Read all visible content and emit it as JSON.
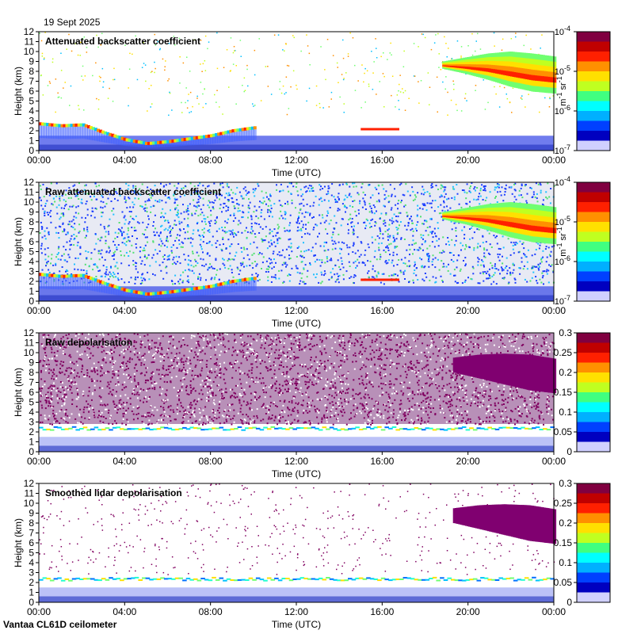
{
  "header": {
    "date": "19 Sept 2025"
  },
  "footer": {
    "instrument": "Vantaa CL61D ceilometer"
  },
  "chart_data": [
    {
      "type": "heatmap",
      "title": "Attenuated backscatter coefficient",
      "xlabel": "Time (UTC)",
      "ylabel": "Height (km)",
      "x_ticks": [
        "00:00",
        "04:00",
        "08:00",
        "12:00",
        "16:00",
        "20:00",
        "00:00"
      ],
      "xlim_hours": [
        0,
        24
      ],
      "y_ticks": [
        0,
        1,
        2,
        3,
        4,
        5,
        6,
        7,
        8,
        9,
        10,
        11,
        12
      ],
      "ylim_km": [
        0,
        12
      ],
      "colorbar": {
        "scale": "log",
        "ticks": [
          "10",
          "10",
          "10",
          "10"
        ],
        "exponents": [
          "-4",
          "-5",
          "-6",
          "-7"
        ],
        "units": "m",
        "units_exp": "-1",
        "units_2": "sr",
        "units_2_exp": "-1"
      },
      "noise_background": "sparse",
      "features": [
        {
          "kind": "boundary_layer_cloud",
          "start_h": 0.0,
          "end_h": 10.0,
          "height_km": [
            2.7,
            2.5,
            2.6,
            1.8,
            1.1,
            0.7,
            0.9,
            1.2,
            1.5,
            2.0,
            2.3
          ]
        },
        {
          "kind": "high_cloud",
          "start_h": 18.8,
          "end_h": 24.0,
          "top_km": [
            9.0,
            9.4,
            9.8,
            10.0,
            9.8,
            9.5
          ],
          "base_km": [
            8.3,
            7.8,
            7.2,
            6.5,
            6.0,
            5.8
          ]
        },
        {
          "kind": "thin_layer",
          "start_h": 15.0,
          "end_h": 16.8,
          "height_km": 2.2
        }
      ]
    },
    {
      "type": "heatmap",
      "title": "Raw attenuated backscatter coefficient",
      "xlabel": "Time (UTC)",
      "ylabel": "Height (km)",
      "x_ticks": [
        "00:00",
        "04:00",
        "08:00",
        "12:00",
        "16:00",
        "20:00",
        "00:00"
      ],
      "xlim_hours": [
        0,
        24
      ],
      "y_ticks": [
        0,
        1,
        2,
        3,
        4,
        5,
        6,
        7,
        8,
        9,
        10,
        11,
        12
      ],
      "ylim_km": [
        0,
        12
      ],
      "colorbar": {
        "scale": "log",
        "ticks": [
          "10",
          "10",
          "10",
          "10"
        ],
        "exponents": [
          "-4",
          "-5",
          "-6",
          "-7"
        ],
        "units": "m",
        "units_exp": "-1",
        "units_2": "sr",
        "units_2_exp": "-1"
      },
      "noise_background": "dense",
      "features": [
        {
          "kind": "boundary_layer_cloud",
          "start_h": 0.0,
          "end_h": 10.0,
          "height_km": [
            2.7,
            2.5,
            2.6,
            1.8,
            1.1,
            0.7,
            0.9,
            1.2,
            1.5,
            2.0,
            2.3
          ]
        },
        {
          "kind": "high_cloud",
          "start_h": 18.8,
          "end_h": 24.0,
          "top_km": [
            9.0,
            9.4,
            9.8,
            10.0,
            9.8,
            9.5
          ],
          "base_km": [
            8.3,
            7.8,
            7.2,
            6.5,
            6.0,
            5.8
          ]
        },
        {
          "kind": "thin_layer",
          "start_h": 15.0,
          "end_h": 16.8,
          "height_km": 2.2
        }
      ]
    },
    {
      "type": "heatmap",
      "title": "Raw depolarisation",
      "xlabel": "Time (UTC)",
      "ylabel": "Height (km)",
      "x_ticks": [
        "00:00",
        "04:00",
        "08:00",
        "12:00",
        "16:00",
        "20:00",
        "00:00"
      ],
      "xlim_hours": [
        0,
        24
      ],
      "y_ticks": [
        0,
        1,
        2,
        3,
        4,
        5,
        6,
        7,
        8,
        9,
        10,
        11,
        12
      ],
      "ylim_km": [
        0,
        12
      ],
      "colorbar": {
        "scale": "linear",
        "ticks": [
          "0.3",
          "0.25",
          "0.2",
          "0.15",
          "0.1",
          "0.05",
          "0"
        ]
      },
      "noise_background": "depol_dense",
      "features": [
        {
          "kind": "boundary_layer_low_depol",
          "start_h": 0.0,
          "end_h": 24.0,
          "height_km": 2.5
        },
        {
          "kind": "high_cloud_depol",
          "start_h": 19.3,
          "end_h": 24.0,
          "top_km": [
            9.5,
            9.8,
            9.9,
            9.8,
            9.4
          ],
          "base_km": [
            8.0,
            7.4,
            6.8,
            6.2,
            5.9
          ]
        }
      ]
    },
    {
      "type": "heatmap",
      "title": "Smoothed lidar depolarisation",
      "xlabel": "Time (UTC)",
      "ylabel": "Height (km)",
      "x_ticks": [
        "00:00",
        "04:00",
        "08:00",
        "12:00",
        "16:00",
        "20:00",
        "00:00"
      ],
      "xlim_hours": [
        0,
        24
      ],
      "y_ticks": [
        0,
        1,
        2,
        3,
        4,
        5,
        6,
        7,
        8,
        9,
        10,
        11,
        12
      ],
      "ylim_km": [
        0,
        12
      ],
      "colorbar": {
        "scale": "linear",
        "ticks": [
          "0.3",
          "0.25",
          "0.2",
          "0.15",
          "0.1",
          "0.05",
          "0"
        ]
      },
      "noise_background": "depol_sparse",
      "features": [
        {
          "kind": "boundary_layer_low_depol",
          "start_h": 0.0,
          "end_h": 24.0,
          "height_km": 2.5
        },
        {
          "kind": "high_cloud_depol",
          "start_h": 19.3,
          "end_h": 24.0,
          "top_km": [
            9.5,
            9.8,
            9.9,
            9.8,
            9.4
          ],
          "base_km": [
            8.0,
            7.4,
            6.8,
            6.2,
            5.9
          ]
        }
      ]
    }
  ]
}
